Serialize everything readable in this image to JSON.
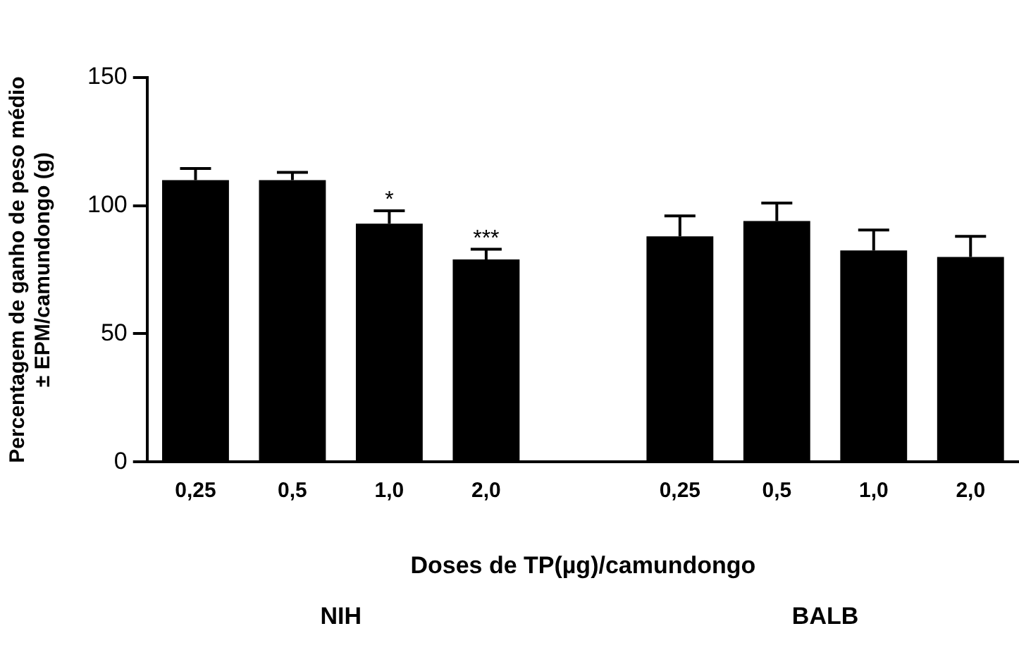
{
  "chart_data": {
    "type": "bar",
    "ylabel": "Percentagem de ganho de peso médio\n± EPM/camundongo (g)",
    "xlabel": "Doses de TP(µg)/camundongo",
    "categories": [
      "0,25",
      "0,5",
      "1,0",
      "2,0",
      null,
      "0,25",
      "0,5",
      "1,0",
      "2,0"
    ],
    "values": [
      110,
      110,
      93,
      79,
      null,
      88,
      94,
      82.5,
      80
    ],
    "errors": [
      4.5,
      3,
      5,
      4,
      null,
      8,
      7,
      8,
      8
    ],
    "value_labels": [
      null,
      null,
      "*",
      "***",
      null,
      null,
      null,
      null,
      null
    ],
    "color": "#000000",
    "ylim": [
      0,
      150
    ],
    "yticks": [
      0,
      50,
      100,
      150
    ],
    "annotations": [
      "NIH",
      "BALB"
    ],
    "grid": false,
    "legend": false
  }
}
